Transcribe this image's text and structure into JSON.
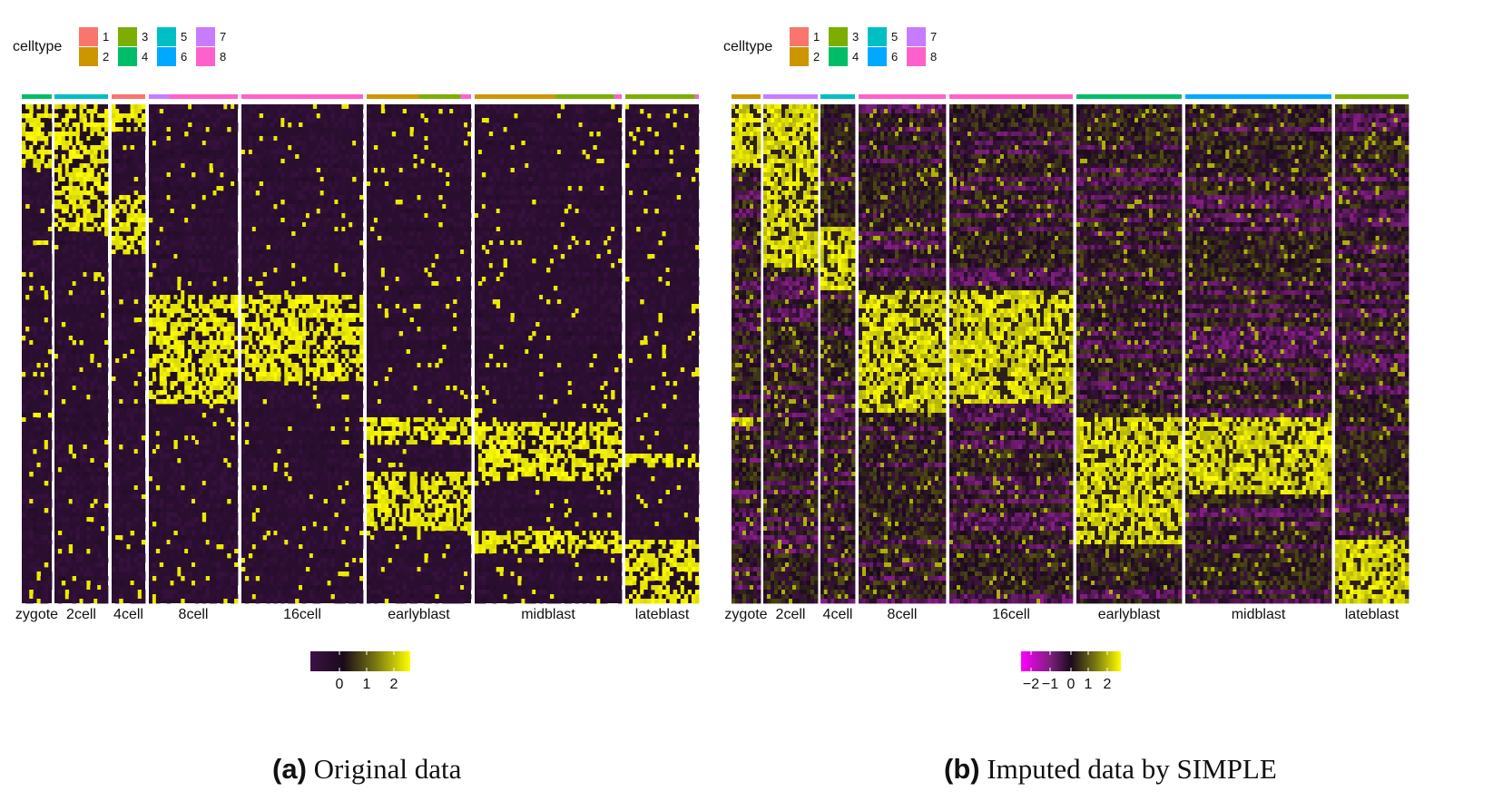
{
  "legend_title": "celltype",
  "celltypes": [
    {
      "label": "1",
      "color": "#F8766D"
    },
    {
      "label": "2",
      "color": "#CD9600"
    },
    {
      "label": "3",
      "color": "#7CAE00"
    },
    {
      "label": "4",
      "color": "#00BE67"
    },
    {
      "label": "5",
      "color": "#00BFC4"
    },
    {
      "label": "6",
      "color": "#00A9FF"
    },
    {
      "label": "7",
      "color": "#C77CFF"
    },
    {
      "label": "8",
      "color": "#FF61CC"
    }
  ],
  "panels": [
    {
      "caption_tag": "(a)",
      "caption_text": "Original data",
      "colorbar_ticks": [
        "0",
        "1",
        "2"
      ],
      "colorscale": [
        "#3d1245",
        "#1a0a1c",
        "#7a7a10",
        "#ffff00"
      ]
    },
    {
      "caption_tag": "(b)",
      "caption_text": "Imputed data by SIMPLE",
      "colorbar_ticks": [
        "−2",
        "−1",
        "0",
        "1",
        "2"
      ],
      "colorscale": [
        "#ff00ff",
        "#7a1f7a",
        "#1a0a1c",
        "#7a7a10",
        "#ffff00"
      ]
    }
  ],
  "chart_data": [
    {
      "type": "heatmap",
      "title": "(a) Original data",
      "columns": [
        {
          "group": "zygote",
          "celltypes": [
            "4"
          ]
        },
        {
          "group": "2cell",
          "celltypes": [
            "5"
          ]
        },
        {
          "group": "4cell",
          "celltypes": [
            "1"
          ]
        },
        {
          "group": "8cell",
          "celltypes": [
            "7",
            "8"
          ]
        },
        {
          "group": "16cell",
          "celltypes": [
            "8"
          ]
        },
        {
          "group": "earlyblast",
          "celltypes": [
            "2",
            "3",
            "8"
          ]
        },
        {
          "group": "midblast",
          "celltypes": [
            "2",
            "3",
            "8"
          ]
        },
        {
          "group": "lateblast",
          "celltypes": [
            "3",
            "8"
          ]
        }
      ],
      "color_range": [
        0,
        2
      ],
      "legend_ticks": [
        0,
        1,
        2
      ]
    },
    {
      "type": "heatmap",
      "title": "(b) Imputed data by SIMPLE",
      "columns": [
        {
          "group": "zygote",
          "celltypes": [
            "2"
          ]
        },
        {
          "group": "2cell",
          "celltypes": [
            "7"
          ]
        },
        {
          "group": "4cell",
          "celltypes": [
            "5"
          ]
        },
        {
          "group": "8cell",
          "celltypes": [
            "8"
          ]
        },
        {
          "group": "16cell",
          "celltypes": [
            "8"
          ]
        },
        {
          "group": "earlyblast",
          "celltypes": [
            "4"
          ]
        },
        {
          "group": "midblast",
          "celltypes": [
            "6"
          ]
        },
        {
          "group": "lateblast",
          "celltypes": [
            "3"
          ]
        }
      ],
      "color_range": [
        -2,
        2
      ],
      "legend_ticks": [
        -2,
        -1,
        0,
        1,
        2
      ]
    }
  ]
}
